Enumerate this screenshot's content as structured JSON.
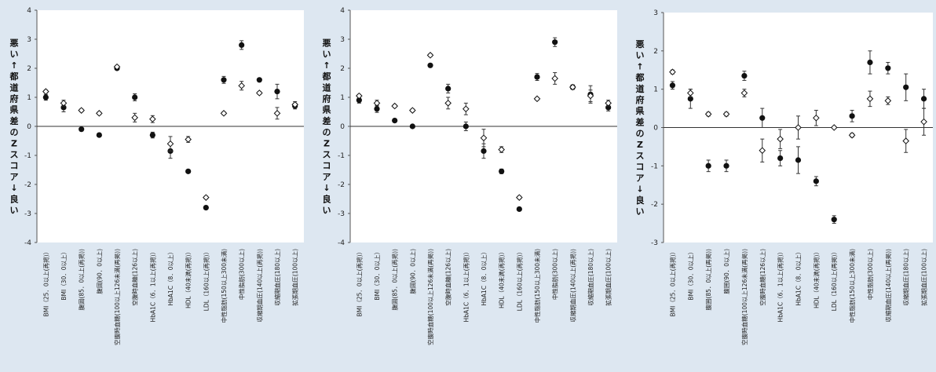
{
  "chart_data": [
    {
      "type": "scatter",
      "ylabel": [
        "悪い↑",
        "都道府県差のZスコア",
        "↓良い"
      ],
      "ylim": [
        -4,
        4
      ],
      "yticks": [
        4,
        3,
        2,
        1,
        0,
        -1,
        -2,
        -3,
        -4
      ],
      "categories": [
        "BMI（25．0以上(再掲)）",
        "BMI（30．0以上）",
        "腹囲(85．0以上(再掲))",
        "腹囲(90．0以上)",
        "空腹時血糖(100以上126未満(再掲))",
        "空腹時血糖(126以上)",
        "HbA1C（6．1以上(再掲)）",
        "HbA1C（8．0以上）",
        "HDL（40未満(再掲)）",
        "LDL（160以上(再掲)）",
        "中性脂肪(150以上300未満)",
        "中性脂肪(300以上)",
        "収縮期血圧(140以上(再掲))",
        "収縮期血圧(180以上)",
        "拡張期血圧(100以上)"
      ],
      "series": [
        {
          "marker": "circle-filled",
          "values": [
            1.0,
            0.65,
            -0.1,
            -0.3,
            2.0,
            1.0,
            -0.3,
            -0.85,
            -1.55,
            -2.8,
            1.6,
            2.8,
            1.6,
            1.2,
            0.7
          ],
          "error": [
            0.1,
            0.15,
            0.05,
            0.05,
            0.05,
            0.12,
            0.1,
            0.25,
            0.05,
            0.05,
            0.12,
            0.15,
            0.05,
            0.25,
            0.1
          ]
        },
        {
          "marker": "diamond-open",
          "values": [
            1.2,
            0.8,
            0.55,
            0.45,
            2.05,
            0.3,
            0.25,
            -0.6,
            -0.45,
            -2.45,
            0.45,
            1.4,
            1.15,
            0.45,
            0.75
          ],
          "error": [
            0.05,
            0.1,
            0.05,
            0.05,
            0.05,
            0.15,
            0.12,
            0.25,
            0.1,
            0.05,
            0.05,
            0.15,
            0.05,
            0.2,
            0.1
          ]
        }
      ]
    },
    {
      "type": "scatter",
      "ylabel": [
        "悪い↑",
        "都道府県差のZスコア",
        "↓良い"
      ],
      "ylim": [
        -4,
        4
      ],
      "yticks": [
        4,
        3,
        2,
        1,
        0,
        -1,
        -2,
        -3,
        -4
      ],
      "categories": [
        "BMI（25．0以上(再掲)）",
        "BMI（30．0以上）",
        "腹囲(85．0以上(再掲))",
        "腹囲(90．0以上)",
        "空腹時血糖(100以上126未満(再掲))",
        "空腹時血糖(126以上)",
        "HbA1C（6．1以上(再掲)）",
        "HbA1C（8．0以上）",
        "HDL（40未満(再掲)）",
        "LDL（160以上(再掲)）",
        "中性脂肪(150以上300未満)",
        "中性脂肪(300以上)",
        "収縮期血圧(140以上(再掲))",
        "収縮期血圧(180以上)",
        "拡張期血圧(100以上)"
      ],
      "series": [
        {
          "marker": "circle-filled",
          "values": [
            0.9,
            0.6,
            0.2,
            0.0,
            2.1,
            1.3,
            0.0,
            -0.85,
            -1.55,
            -2.85,
            1.7,
            2.9,
            1.35,
            1.1,
            0.65
          ],
          "error": [
            0.1,
            0.12,
            0.05,
            0.05,
            0.05,
            0.15,
            0.15,
            0.25,
            0.08,
            0.05,
            0.12,
            0.15,
            0.08,
            0.3,
            0.12
          ]
        },
        {
          "marker": "diamond-open",
          "values": [
            1.05,
            0.8,
            0.7,
            0.55,
            2.45,
            0.8,
            0.6,
            -0.4,
            -0.8,
            -2.45,
            0.95,
            1.65,
            1.35,
            1.05,
            0.8
          ],
          "error": [
            0.05,
            0.1,
            0.05,
            0.05,
            0.05,
            0.2,
            0.2,
            0.3,
            0.1,
            0.05,
            0.05,
            0.2,
            0.05,
            0.2,
            0.1
          ]
        }
      ]
    },
    {
      "type": "scatter",
      "ylabel": [
        "悪い↑",
        "都道府県差のZスコア",
        "↓良い"
      ],
      "ylim": [
        -3,
        3
      ],
      "yticks": [
        3,
        2,
        1,
        0,
        -1,
        -2,
        -3
      ],
      "categories": [
        "BMI（25．0以上(再掲)）",
        "BMI（30．0以上）",
        "腹囲(85．0以上(再掲))",
        "腹囲(90．0以上)",
        "空腹時血糖(100以上126未満(再掲))",
        "空腹時血糖(126以上)",
        "HbA1C（6．1以上(再掲)）",
        "HbA1C（8．0以上）",
        "HDL（40未満(再掲)）",
        "LDL（160以上(再掲)）",
        "中性脂肪(150以上300未満)",
        "中性脂肪(300以上)",
        "収縮期血圧(140以上(再掲))",
        "収縮期血圧(180以上)",
        "拡張期血圧(100以上)"
      ],
      "series": [
        {
          "marker": "circle-filled",
          "values": [
            1.1,
            0.75,
            -1.0,
            -1.0,
            1.35,
            0.25,
            -0.8,
            -0.85,
            -1.4,
            -2.4,
            0.3,
            1.7,
            1.55,
            1.05,
            0.75
          ],
          "error": [
            0.1,
            0.25,
            0.15,
            0.15,
            0.12,
            0.25,
            0.2,
            0.35,
            0.12,
            0.1,
            0.15,
            0.3,
            0.15,
            0.35,
            0.25
          ]
        },
        {
          "marker": "diamond-open",
          "values": [
            1.45,
            0.9,
            0.35,
            0.35,
            0.9,
            -0.6,
            -0.3,
            0.0,
            0.25,
            0.0,
            -0.2,
            0.75,
            0.7,
            -0.35,
            0.15
          ],
          "error": [
            0.05,
            0.1,
            0.05,
            0.05,
            0.1,
            0.3,
            0.25,
            0.3,
            0.2,
            0.0,
            0.05,
            0.2,
            0.1,
            0.3,
            0.35
          ]
        }
      ]
    }
  ]
}
